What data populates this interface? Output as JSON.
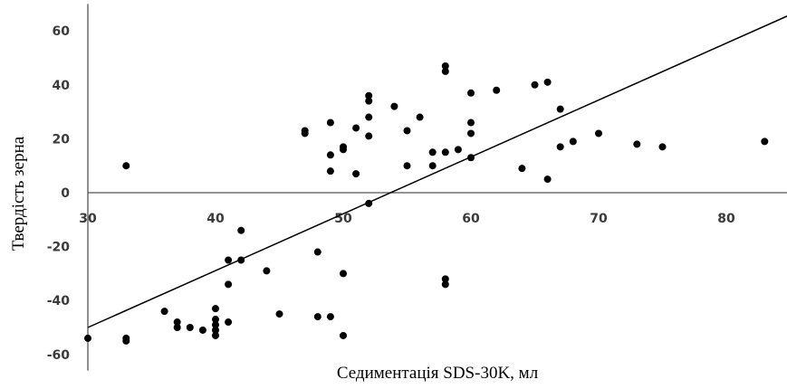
{
  "chart_data": {
    "type": "scatter",
    "title": "",
    "xlabel": "Седиментація SDS-30K, мл",
    "ylabel": "Твердість зерна",
    "xlim": [
      30,
      85
    ],
    "ylim": [
      -66,
      70
    ],
    "x_ticks": [
      30,
      40,
      50,
      60,
      70,
      80
    ],
    "y_ticks": [
      60,
      40,
      20,
      0,
      -20,
      -40,
      -60
    ],
    "x_tick_labels": [
      "30",
      "40",
      "50",
      "60",
      "70",
      "80"
    ],
    "y_tick_labels": [
      "60",
      "40",
      "20",
      "0",
      "-20",
      "-40",
      "-60"
    ],
    "grid": false,
    "legend": "none",
    "points": [
      [
        30,
        -54
      ],
      [
        33,
        10
      ],
      [
        33,
        -54
      ],
      [
        33,
        -55
      ],
      [
        36,
        -44
      ],
      [
        37,
        -48
      ],
      [
        37,
        -50
      ],
      [
        38,
        -50
      ],
      [
        39,
        -51
      ],
      [
        40,
        -43
      ],
      [
        40,
        -47
      ],
      [
        40,
        -49
      ],
      [
        40,
        -51
      ],
      [
        40,
        -53
      ],
      [
        41,
        -25
      ],
      [
        41,
        -34
      ],
      [
        41,
        -48
      ],
      [
        42,
        -14
      ],
      [
        42,
        -25
      ],
      [
        44,
        -29
      ],
      [
        45,
        -45
      ],
      [
        47,
        22
      ],
      [
        47,
        23
      ],
      [
        48,
        -22
      ],
      [
        48,
        -46
      ],
      [
        49,
        26
      ],
      [
        49,
        14
      ],
      [
        49,
        8
      ],
      [
        49,
        -46
      ],
      [
        50,
        17
      ],
      [
        50,
        16
      ],
      [
        50,
        -30
      ],
      [
        50,
        -53
      ],
      [
        51,
        24
      ],
      [
        51,
        7
      ],
      [
        52,
        36
      ],
      [
        52,
        34
      ],
      [
        52,
        28
      ],
      [
        52,
        21
      ],
      [
        52,
        -4
      ],
      [
        54,
        32
      ],
      [
        55,
        23
      ],
      [
        55,
        10
      ],
      [
        56,
        28
      ],
      [
        57,
        15
      ],
      [
        57,
        10
      ],
      [
        58,
        47
      ],
      [
        58,
        45
      ],
      [
        58,
        15
      ],
      [
        58,
        -32
      ],
      [
        58,
        -34
      ],
      [
        59,
        16
      ],
      [
        60,
        37
      ],
      [
        60,
        26
      ],
      [
        60,
        22
      ],
      [
        60,
        13
      ],
      [
        62,
        38
      ],
      [
        64,
        9
      ],
      [
        65,
        40
      ],
      [
        66,
        41
      ],
      [
        66,
        5
      ],
      [
        67,
        31
      ],
      [
        67,
        17
      ],
      [
        68,
        19
      ],
      [
        70,
        22
      ],
      [
        73,
        18
      ],
      [
        75,
        17
      ],
      [
        83,
        19
      ]
    ],
    "trendline": {
      "x": [
        30,
        85
      ],
      "y": [
        -50,
        66
      ]
    }
  }
}
